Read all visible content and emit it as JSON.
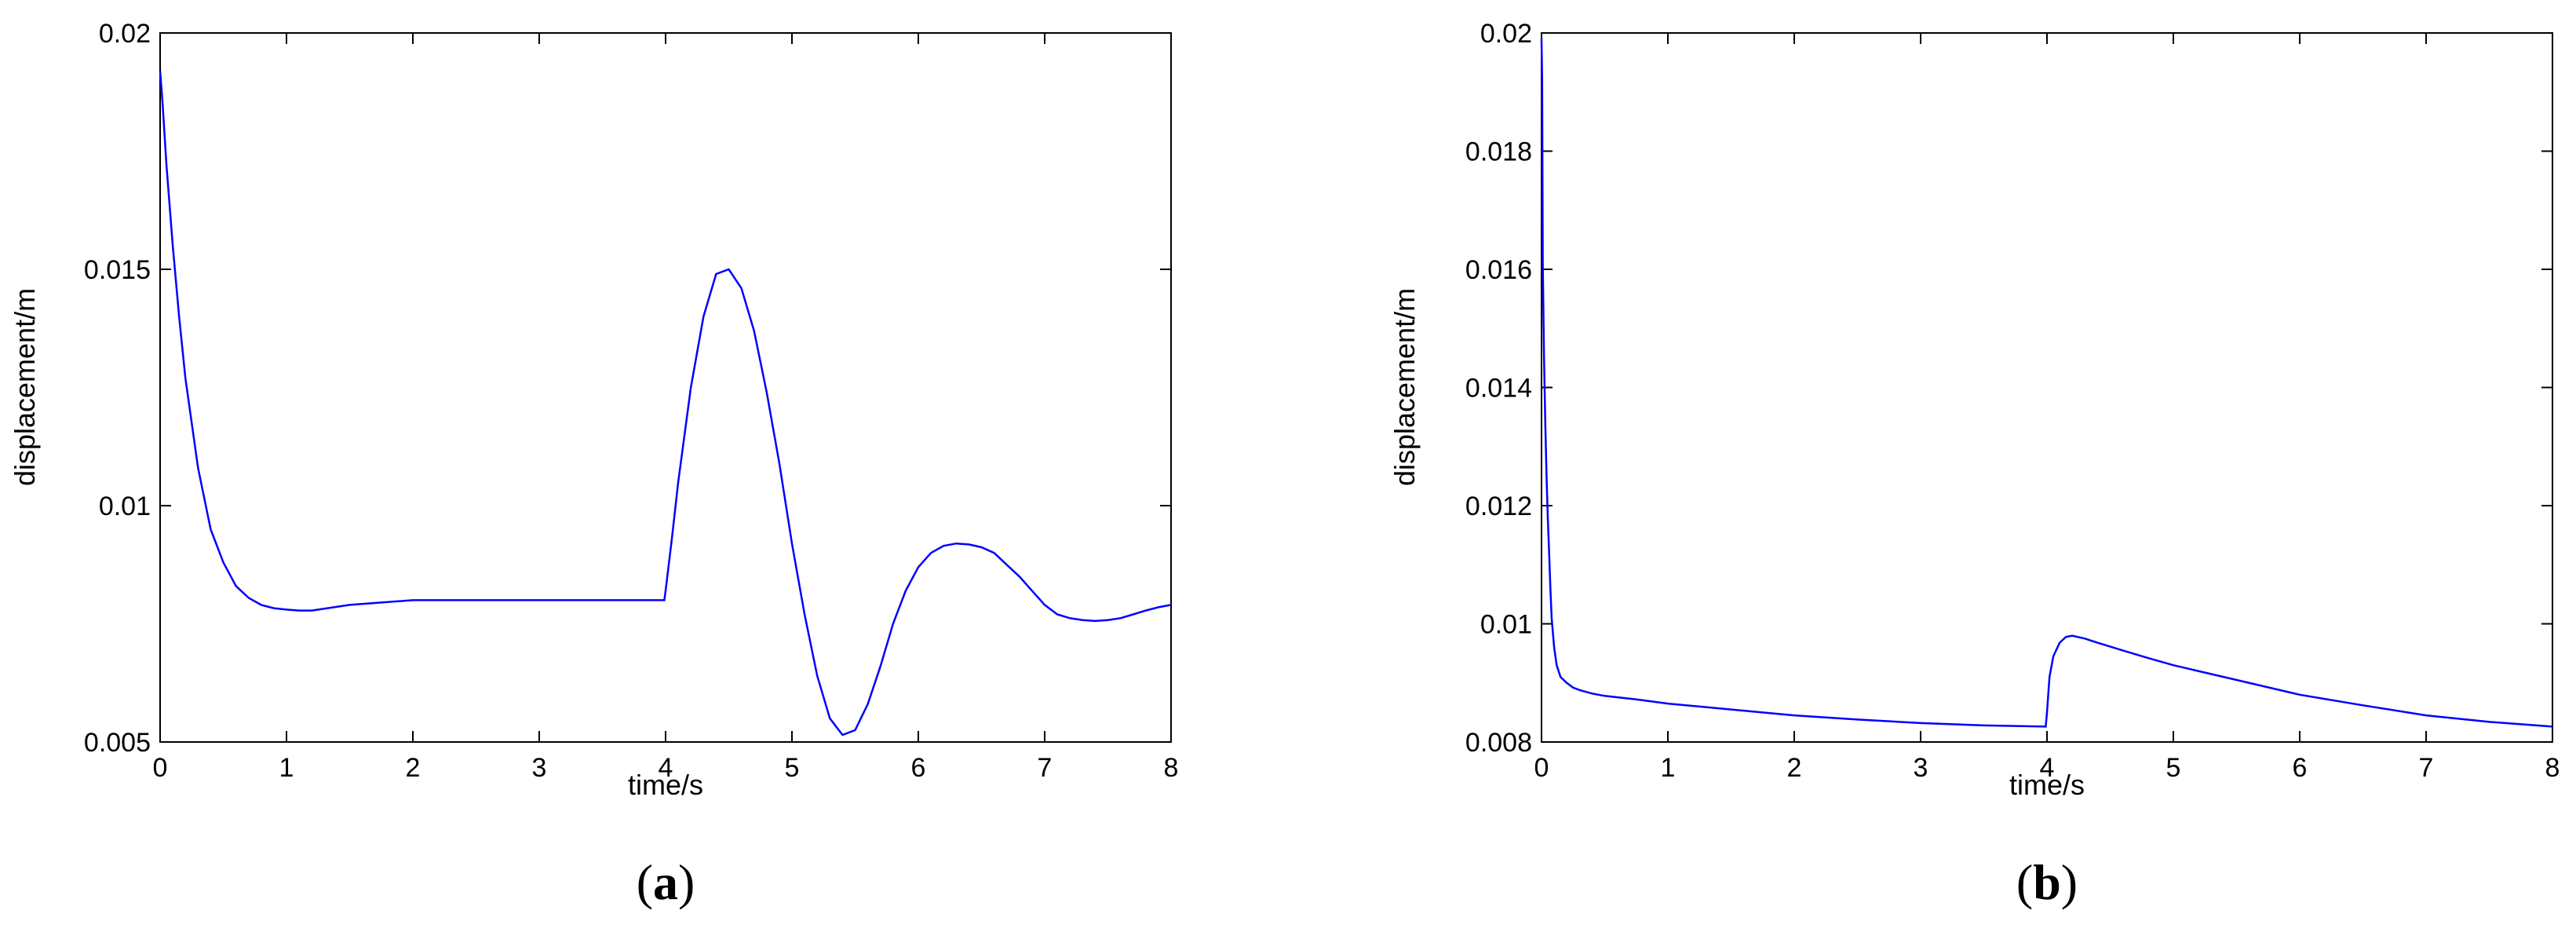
{
  "chart_data": [
    {
      "type": "line",
      "panel_label": "a",
      "xlabel": "time/s",
      "ylabel": "displacement/m",
      "xlim": [
        0,
        8
      ],
      "ylim": [
        0.005,
        0.02
      ],
      "xticks": [
        "0",
        "1",
        "2",
        "3",
        "4",
        "5",
        "6",
        "7",
        "8"
      ],
      "yticks": [
        "0.005",
        "0.01",
        "0.015",
        "0.02"
      ],
      "xtick_values": [
        0,
        1,
        2,
        3,
        4,
        5,
        6,
        7,
        8
      ],
      "ytick_values": [
        0.005,
        0.01,
        0.015,
        0.02
      ],
      "grid": false,
      "line_color": "#0000ff",
      "series": [
        {
          "x": [
            0,
            0.02,
            0.05,
            0.1,
            0.15,
            0.2,
            0.3,
            0.4,
            0.5,
            0.6,
            0.7,
            0.8,
            0.9,
            1.0,
            1.1,
            1.2,
            1.5,
            2.0,
            2.5,
            3.0,
            3.5,
            3.99,
            4.0,
            4.05,
            4.1,
            4.2,
            4.3,
            4.4,
            4.5,
            4.6,
            4.7,
            4.8,
            4.9,
            5.0,
            5.1,
            5.2,
            5.3,
            5.4,
            5.5,
            5.6,
            5.7,
            5.8,
            5.9,
            6.0,
            6.1,
            6.2,
            6.3,
            6.4,
            6.5,
            6.6,
            6.7,
            6.8,
            6.9,
            7.0,
            7.1,
            7.2,
            7.3,
            7.4,
            7.5,
            7.6,
            7.7,
            7.8,
            7.9,
            8.0
          ],
          "y": [
            0.0192,
            0.0185,
            0.0172,
            0.0155,
            0.014,
            0.0127,
            0.0108,
            0.0095,
            0.0088,
            0.0083,
            0.00805,
            0.0079,
            0.00783,
            0.0078,
            0.00778,
            0.00778,
            0.0079,
            0.008,
            0.008,
            0.008,
            0.008,
            0.008,
            0.0082,
            0.0093,
            0.0105,
            0.0125,
            0.014,
            0.0149,
            0.015,
            0.0146,
            0.0137,
            0.0124,
            0.0109,
            0.0092,
            0.0077,
            0.0064,
            0.0055,
            0.00515,
            0.00525,
            0.0058,
            0.0066,
            0.0075,
            0.0082,
            0.0087,
            0.009,
            0.00915,
            0.0092,
            0.00918,
            0.00912,
            0.009,
            0.00875,
            0.0085,
            0.0082,
            0.0079,
            0.0077,
            0.00762,
            0.00758,
            0.00756,
            0.00758,
            0.00762,
            0.0077,
            0.00778,
            0.00785,
            0.0079
          ]
        }
      ]
    },
    {
      "type": "line",
      "panel_label": "b",
      "xlabel": "time/s",
      "ylabel": "displacement/m",
      "xlim": [
        0,
        8
      ],
      "ylim": [
        0.008,
        0.02
      ],
      "xticks": [
        "0",
        "1",
        "2",
        "3",
        "4",
        "5",
        "6",
        "7",
        "8"
      ],
      "yticks": [
        "0.008",
        "0.01",
        "0.012",
        "0.014",
        "0.016",
        "0.018",
        "0.02"
      ],
      "xtick_values": [
        0,
        1,
        2,
        3,
        4,
        5,
        6,
        7,
        8
      ],
      "ytick_values": [
        0.008,
        0.01,
        0.012,
        0.014,
        0.016,
        0.018,
        0.02
      ],
      "grid": false,
      "line_color": "#0000ff",
      "series": [
        {
          "x": [
            0,
            0.005,
            0.01,
            0.02,
            0.03,
            0.04,
            0.05,
            0.06,
            0.07,
            0.08,
            0.1,
            0.12,
            0.15,
            0.2,
            0.25,
            0.3,
            0.4,
            0.5,
            0.75,
            1.0,
            1.5,
            2.0,
            2.5,
            3.0,
            3.5,
            3.99,
            4.0,
            4.02,
            4.05,
            4.1,
            4.15,
            4.2,
            4.3,
            4.4,
            4.6,
            4.8,
            5.0,
            5.5,
            6.0,
            6.5,
            7.0,
            7.5,
            8.0
          ],
          "y": [
            0.0199,
            0.0192,
            0.0161,
            0.0145,
            0.0134,
            0.0125,
            0.0118,
            0.0112,
            0.0106,
            0.0101,
            0.0096,
            0.0093,
            0.0091,
            0.009,
            0.00892,
            0.00888,
            0.00882,
            0.00878,
            0.00872,
            0.00865,
            0.00855,
            0.00845,
            0.00838,
            0.00832,
            0.00828,
            0.00826,
            0.0085,
            0.0091,
            0.00945,
            0.00968,
            0.00978,
            0.0098,
            0.00975,
            0.00968,
            0.00955,
            0.00942,
            0.0093,
            0.00905,
            0.0088,
            0.00862,
            0.00845,
            0.00834,
            0.00826
          ]
        }
      ]
    }
  ]
}
